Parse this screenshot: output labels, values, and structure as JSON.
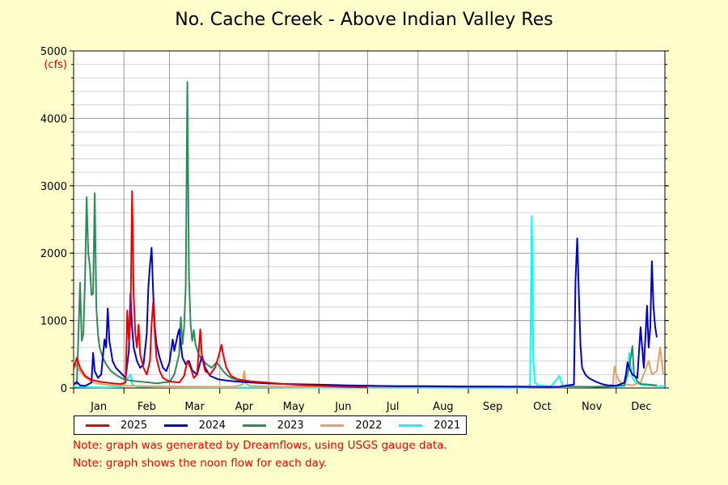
{
  "page": {
    "background": "#ffffcc"
  },
  "chart_data": {
    "type": "line",
    "title": "No. Cache Creek - Above Indian Valley Res",
    "ylabel": "(cfs)",
    "xlabel": "",
    "ylim": [
      0,
      5000
    ],
    "xlim": [
      1,
      365
    ],
    "yticks": [
      0,
      1000,
      2000,
      3000,
      4000,
      5000
    ],
    "ytick_labels": [
      "0",
      "1000",
      "2000",
      "3000",
      "4000",
      "5000"
    ],
    "month_starts": [
      1,
      32,
      60,
      91,
      121,
      152,
      182,
      213,
      244,
      274,
      305,
      335
    ],
    "months": [
      "Jan",
      "Feb",
      "Mar",
      "Apr",
      "May",
      "Jun",
      "Jul",
      "Aug",
      "Sep",
      "Oct",
      "Nov",
      "Dec"
    ],
    "grid": true,
    "legend_position": "bottom",
    "series": [
      {
        "name": "2025",
        "color": "#ee0000",
        "points": [
          [
            1,
            280
          ],
          [
            3,
            450
          ],
          [
            5,
            300
          ],
          [
            8,
            180
          ],
          [
            12,
            120
          ],
          [
            18,
            90
          ],
          [
            25,
            70
          ],
          [
            30,
            60
          ],
          [
            33,
            80
          ],
          [
            34,
            1150
          ],
          [
            35,
            700
          ],
          [
            36,
            1000
          ],
          [
            37,
            2920
          ],
          [
            38,
            1350
          ],
          [
            39,
            800
          ],
          [
            40,
            600
          ],
          [
            41,
            940
          ],
          [
            42,
            500
          ],
          [
            44,
            300
          ],
          [
            46,
            200
          ],
          [
            48,
            400
          ],
          [
            49,
            950
          ],
          [
            50,
            1280
          ],
          [
            51,
            800
          ],
          [
            52,
            450
          ],
          [
            54,
            250
          ],
          [
            56,
            150
          ],
          [
            58,
            120
          ],
          [
            60,
            100
          ],
          [
            63,
            90
          ],
          [
            66,
            80
          ],
          [
            69,
            180
          ],
          [
            71,
            400
          ],
          [
            73,
            300
          ],
          [
            75,
            150
          ],
          [
            77,
            200
          ],
          [
            79,
            870
          ],
          [
            80,
            450
          ],
          [
            82,
            250
          ],
          [
            85,
            200
          ],
          [
            88,
            300
          ],
          [
            90,
            450
          ],
          [
            92,
            640
          ],
          [
            93,
            500
          ],
          [
            95,
            300
          ],
          [
            98,
            180
          ],
          [
            102,
            130
          ],
          [
            110,
            100
          ],
          [
            120,
            80
          ],
          [
            130,
            60
          ],
          [
            145,
            40
          ],
          [
            160,
            25
          ],
          [
            170,
            15
          ],
          [
            182,
            10
          ]
        ]
      },
      {
        "name": "2024",
        "color": "#0000cc",
        "points": [
          [
            1,
            50
          ],
          [
            3,
            90
          ],
          [
            5,
            40
          ],
          [
            8,
            30
          ],
          [
            12,
            80
          ],
          [
            13,
            520
          ],
          [
            14,
            250
          ],
          [
            16,
            150
          ],
          [
            18,
            200
          ],
          [
            20,
            720
          ],
          [
            21,
            600
          ],
          [
            22,
            1180
          ],
          [
            23,
            700
          ],
          [
            25,
            400
          ],
          [
            27,
            300
          ],
          [
            29,
            250
          ],
          [
            31,
            200
          ],
          [
            33,
            150
          ],
          [
            35,
            550
          ],
          [
            36,
            1400
          ],
          [
            37,
            900
          ],
          [
            38,
            600
          ],
          [
            40,
            400
          ],
          [
            42,
            300
          ],
          [
            44,
            350
          ],
          [
            46,
            800
          ],
          [
            47,
            1500
          ],
          [
            48,
            1820
          ],
          [
            49,
            2080
          ],
          [
            50,
            1400
          ],
          [
            51,
            900
          ],
          [
            52,
            650
          ],
          [
            54,
            450
          ],
          [
            56,
            300
          ],
          [
            58,
            250
          ],
          [
            60,
            380
          ],
          [
            62,
            720
          ],
          [
            63,
            550
          ],
          [
            65,
            780
          ],
          [
            66,
            870
          ],
          [
            67,
            650
          ],
          [
            68,
            450
          ],
          [
            70,
            350
          ],
          [
            72,
            400
          ],
          [
            74,
            260
          ],
          [
            77,
            200
          ],
          [
            80,
            480
          ],
          [
            82,
            300
          ],
          [
            85,
            180
          ],
          [
            90,
            130
          ],
          [
            95,
            110
          ],
          [
            100,
            100
          ],
          [
            105,
            90
          ],
          [
            110,
            80
          ],
          [
            120,
            70
          ],
          [
            130,
            60
          ],
          [
            140,
            55
          ],
          [
            150,
            50
          ],
          [
            160,
            45
          ],
          [
            170,
            40
          ],
          [
            180,
            35
          ],
          [
            190,
            30
          ],
          [
            200,
            28
          ],
          [
            220,
            25
          ],
          [
            240,
            22
          ],
          [
            260,
            20
          ],
          [
            280,
            18
          ],
          [
            290,
            16
          ],
          [
            295,
            15
          ],
          [
            300,
            18
          ],
          [
            305,
            40
          ],
          [
            309,
            50
          ],
          [
            310,
            1600
          ],
          [
            311,
            2220
          ],
          [
            312,
            1400
          ],
          [
            313,
            640
          ],
          [
            314,
            300
          ],
          [
            316,
            200
          ],
          [
            318,
            150
          ],
          [
            322,
            100
          ],
          [
            326,
            60
          ],
          [
            330,
            40
          ],
          [
            335,
            35
          ],
          [
            338,
            60
          ],
          [
            340,
            80
          ],
          [
            341,
            200
          ],
          [
            342,
            380
          ],
          [
            343,
            300
          ],
          [
            345,
            200
          ],
          [
            348,
            150
          ],
          [
            350,
            900
          ],
          [
            352,
            300
          ],
          [
            354,
            1220
          ],
          [
            355,
            600
          ],
          [
            356,
            900
          ],
          [
            357,
            1880
          ],
          [
            358,
            1200
          ],
          [
            359,
            900
          ],
          [
            360,
            750
          ]
        ]
      },
      {
        "name": "2023",
        "color": "#2e8b57",
        "points": [
          [
            1,
            80
          ],
          [
            3,
            60
          ],
          [
            5,
            1560
          ],
          [
            6,
            700
          ],
          [
            7,
            800
          ],
          [
            8,
            1600
          ],
          [
            9,
            2830
          ],
          [
            10,
            2000
          ],
          [
            11,
            1800
          ],
          [
            12,
            1380
          ],
          [
            13,
            1400
          ],
          [
            14,
            2890
          ],
          [
            15,
            1200
          ],
          [
            16,
            800
          ],
          [
            17,
            600
          ],
          [
            19,
            450
          ],
          [
            21,
            350
          ],
          [
            24,
            250
          ],
          [
            28,
            180
          ],
          [
            32,
            130
          ],
          [
            36,
            110
          ],
          [
            40,
            100
          ],
          [
            44,
            90
          ],
          [
            48,
            80
          ],
          [
            52,
            70
          ],
          [
            56,
            80
          ],
          [
            60,
            90
          ],
          [
            63,
            200
          ],
          [
            64,
            300
          ],
          [
            66,
            500
          ],
          [
            67,
            1050
          ],
          [
            68,
            650
          ],
          [
            69,
            900
          ],
          [
            70,
            1500
          ],
          [
            71,
            4540
          ],
          [
            72,
            1650
          ],
          [
            73,
            950
          ],
          [
            74,
            700
          ],
          [
            75,
            860
          ],
          [
            76,
            650
          ],
          [
            78,
            500
          ],
          [
            80,
            420
          ],
          [
            83,
            350
          ],
          [
            86,
            300
          ],
          [
            89,
            380
          ],
          [
            91,
            320
          ],
          [
            93,
            250
          ],
          [
            95,
            200
          ],
          [
            98,
            150
          ],
          [
            102,
            120
          ],
          [
            106,
            100
          ],
          [
            110,
            90
          ],
          [
            115,
            80
          ],
          [
            120,
            70
          ],
          [
            130,
            60
          ],
          [
            140,
            50
          ],
          [
            150,
            45
          ],
          [
            160,
            40
          ],
          [
            170,
            35
          ],
          [
            180,
            32
          ],
          [
            190,
            30
          ],
          [
            200,
            28
          ],
          [
            220,
            26
          ],
          [
            240,
            24
          ],
          [
            260,
            22
          ],
          [
            280,
            20
          ],
          [
            300,
            18
          ],
          [
            320,
            18
          ],
          [
            330,
            20
          ],
          [
            340,
            40
          ],
          [
            343,
            300
          ],
          [
            345,
            620
          ],
          [
            346,
            200
          ],
          [
            348,
            100
          ],
          [
            350,
            60
          ],
          [
            355,
            50
          ],
          [
            360,
            40
          ]
        ]
      },
      {
        "name": "2022",
        "color": "#e8a060",
        "points": [
          [
            1,
            400
          ],
          [
            3,
            320
          ],
          [
            5,
            250
          ],
          [
            8,
            160
          ],
          [
            12,
            90
          ],
          [
            15,
            70
          ],
          [
            20,
            50
          ],
          [
            25,
            40
          ],
          [
            30,
            35
          ],
          [
            40,
            30
          ],
          [
            50,
            28
          ],
          [
            60,
            25
          ],
          [
            70,
            22
          ],
          [
            80,
            20
          ],
          [
            90,
            18
          ],
          [
            100,
            20
          ],
          [
            105,
            50
          ],
          [
            106,
            250
          ],
          [
            107,
            60
          ],
          [
            110,
            30
          ],
          [
            120,
            25
          ],
          [
            130,
            22
          ],
          [
            140,
            20
          ],
          [
            150,
            18
          ],
          [
            160,
            15
          ],
          [
            170,
            12
          ],
          [
            180,
            10
          ],
          [
            200,
            8
          ],
          [
            220,
            8
          ],
          [
            240,
            8
          ],
          [
            260,
            8
          ],
          [
            280,
            8
          ],
          [
            300,
            10
          ],
          [
            320,
            15
          ],
          [
            330,
            30
          ],
          [
            333,
            50
          ],
          [
            334,
            320
          ],
          [
            335,
            200
          ],
          [
            337,
            100
          ],
          [
            340,
            60
          ],
          [
            345,
            40
          ],
          [
            350,
            80
          ],
          [
            355,
            400
          ],
          [
            357,
            200
          ],
          [
            360,
            250
          ],
          [
            362,
            600
          ],
          [
            364,
            200
          ]
        ]
      },
      {
        "name": "2021",
        "color": "#00ffff",
        "points": [
          [
            1,
            20
          ],
          [
            5,
            15
          ],
          [
            10,
            12
          ],
          [
            20,
            10
          ],
          [
            30,
            15
          ],
          [
            36,
            200
          ],
          [
            37,
            50
          ],
          [
            40,
            20
          ],
          [
            50,
            15
          ],
          [
            60,
            12
          ],
          [
            70,
            10
          ],
          [
            80,
            10
          ],
          [
            90,
            10
          ],
          [
            100,
            8
          ],
          [
            120,
            8
          ],
          [
            150,
            6
          ],
          [
            180,
            5
          ],
          [
            210,
            5
          ],
          [
            240,
            4
          ],
          [
            270,
            4
          ],
          [
            280,
            5
          ],
          [
            282,
            50
          ],
          [
            283,
            2550
          ],
          [
            284,
            400
          ],
          [
            285,
            80
          ],
          [
            287,
            40
          ],
          [
            290,
            30
          ],
          [
            295,
            25
          ],
          [
            300,
            180
          ],
          [
            301,
            100
          ],
          [
            302,
            40
          ],
          [
            305,
            25
          ],
          [
            310,
            20
          ],
          [
            320,
            18
          ],
          [
            330,
            20
          ],
          [
            340,
            30
          ],
          [
            342,
            180
          ],
          [
            343,
            520
          ],
          [
            344,
            300
          ],
          [
            345,
            150
          ],
          [
            347,
            80
          ],
          [
            350,
            50
          ],
          [
            355,
            40
          ],
          [
            360,
            30
          ],
          [
            365,
            25
          ]
        ]
      }
    ]
  },
  "notes": [
    "Note: graph was generated by Dreamflows, using USGS gauge data.",
    "Note: graph shows the noon flow for each day."
  ]
}
